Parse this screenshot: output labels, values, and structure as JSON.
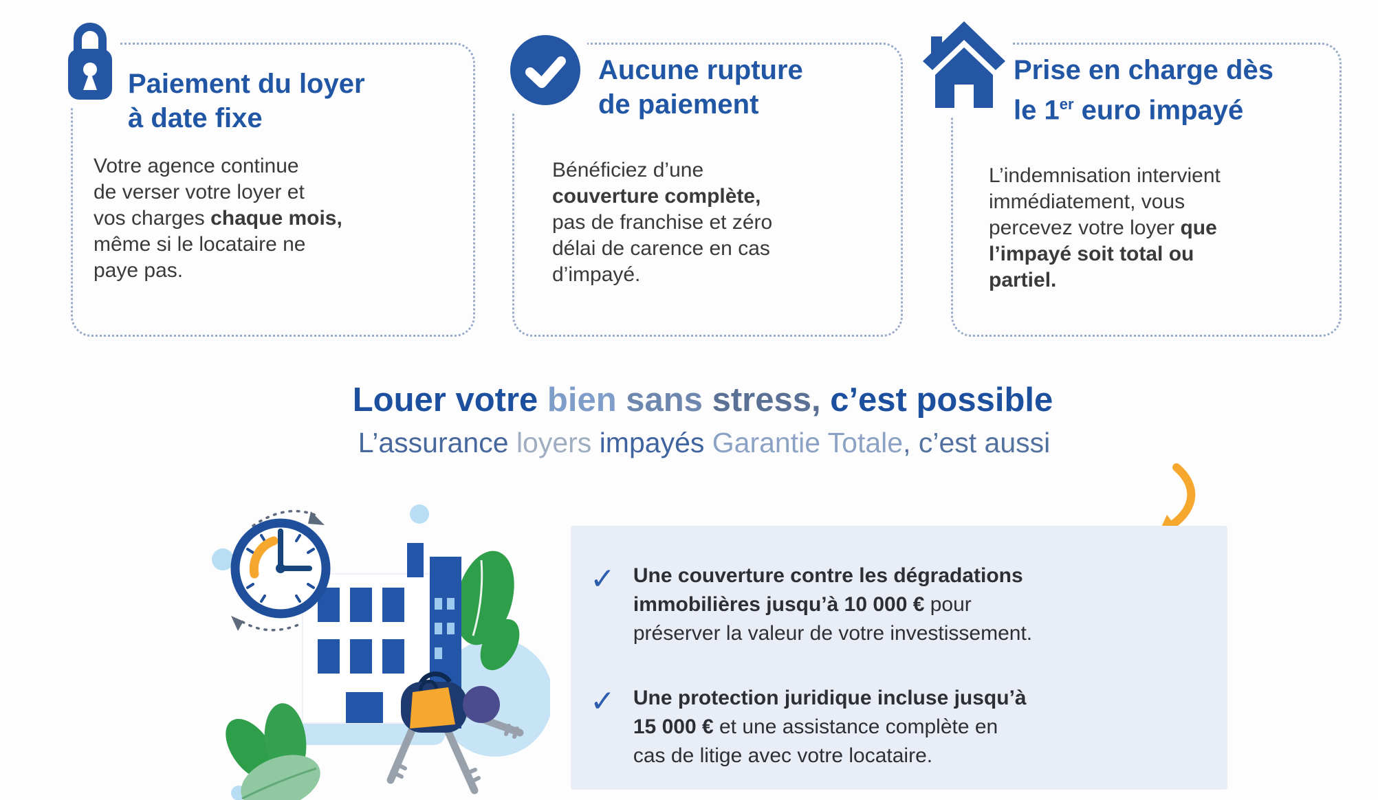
{
  "colors": {
    "primary_blue": "#2456a4",
    "title_blue": "#2156a5",
    "heading_blue": "#1c4f9d",
    "body_text": "#3a3a3c",
    "dotted_border": "#97abc9",
    "panel_background": "#e9edf6",
    "orange_accent": "#f6a72e",
    "check_blue": "#2d5dae",
    "green_leaf": "#2f9e4a",
    "light_green_leaf": "#90c9a1",
    "light_blue_blob": "#c7e3f6"
  },
  "cards": [
    {
      "icon": "lock-icon",
      "title_lines": [
        [
          {
            "t": "Paiement du loyer"
          }
        ],
        [
          {
            "t": "à date fixe"
          }
        ]
      ],
      "body_lines": [
        [
          {
            "t": "Votre agence continue"
          }
        ],
        [
          {
            "t": "de verser votre loyer et"
          }
        ],
        [
          {
            "t": "vos charges "
          },
          {
            "t": "chaque mois,",
            "b": 1
          }
        ],
        [
          {
            "t": "même si le locataire ne"
          }
        ],
        [
          {
            "t": "paye pas."
          }
        ]
      ]
    },
    {
      "icon": "check-circle-icon",
      "title_lines": [
        [
          {
            "t": "Aucune rupture"
          }
        ],
        [
          {
            "t": "de paiement"
          }
        ]
      ],
      "body_lines": [
        [
          {
            "t": "Bénéficiez d’une"
          }
        ],
        [
          {
            "t": "couverture complète,",
            "b": 1
          }
        ],
        [
          {
            "t": "pas de franchise et zéro"
          }
        ],
        [
          {
            "t": "délai de carence en cas"
          }
        ],
        [
          {
            "t": "d’impayé."
          }
        ]
      ]
    },
    {
      "icon": "house-icon",
      "title_lines": [
        [
          {
            "t": "Prise en charge dès"
          }
        ],
        [
          {
            "t": "le 1"
          },
          {
            "t": "er",
            "sup": 1
          },
          {
            "t": " euro impayé"
          }
        ]
      ],
      "body_lines": [
        [
          {
            "t": "L’indemnisation intervient"
          }
        ],
        [
          {
            "t": "immédiatement, vous"
          }
        ],
        [
          {
            "t": "percevez votre loyer "
          },
          {
            "t": "que",
            "b": 1
          }
        ],
        [
          {
            "t": "l’impayé soit total ou",
            "b": 1
          }
        ],
        [
          {
            "t": "partiel.",
            "b": 1
          }
        ]
      ]
    }
  ],
  "heading": {
    "lines": [
      [
        {
          "t": "Louer votre ",
          "c": "#1c4f9d"
        },
        {
          "t": "bien ",
          "c": "#7f9dc9"
        },
        {
          "t": "sans ",
          "c": "#6e87ae"
        },
        {
          "t": "stress, ",
          "c": "#5a7094"
        },
        {
          "t": "c’est possible",
          "c": "#1c4f9d"
        }
      ]
    ]
  },
  "subheading": {
    "lines": [
      [
        {
          "t": "L’assurance ",
          "c": "#47689c"
        },
        {
          "t": "loyers ",
          "c": "#9fadc1"
        },
        {
          "t": "impayés ",
          "c": "#3f639e"
        },
        {
          "t": "Garantie Totale",
          "c": "#8ba2c4"
        },
        {
          "t": ", c’est aussi",
          "c": "#53719f"
        }
      ]
    ]
  },
  "benefits": {
    "check_glyph": "✓",
    "items": [
      {
        "lines": [
          [
            {
              "t": "Une couverture contre les dégradations",
              "b": 1
            }
          ],
          [
            {
              "t": "immobilières jusqu’à 10 000 €",
              "b": 1
            },
            {
              "t": " pour"
            }
          ],
          [
            {
              "t": "préserver la valeur de votre investissement."
            }
          ]
        ]
      },
      {
        "lines": [
          [
            {
              "t": "Une protection juridique incluse jusqu’à",
              "b": 1
            }
          ],
          [
            {
              "t": "15 000 €",
              "b": 1
            },
            {
              "t": " et une assistance complète en"
            }
          ],
          [
            {
              "t": "cas de litige avec votre locataire."
            }
          ]
        ]
      }
    ]
  }
}
